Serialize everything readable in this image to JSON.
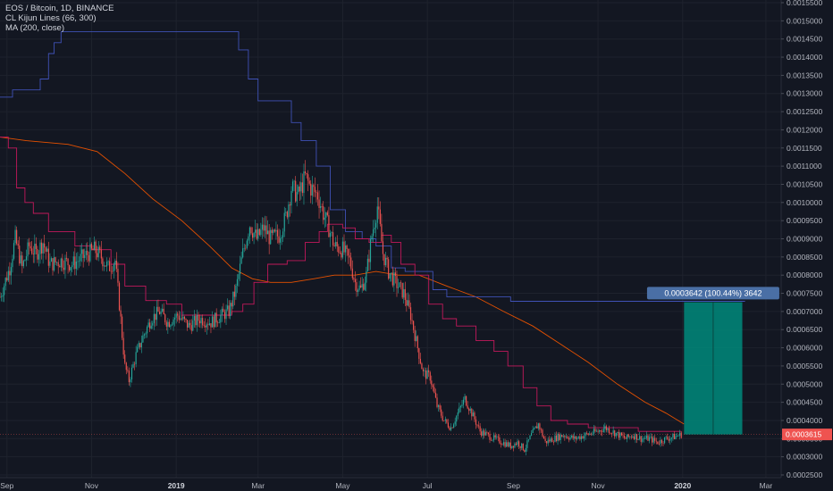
{
  "legend": {
    "symbol_line": "EOS / Bitcoin, 1D, BINANCE",
    "indicator_1": "CL Kijun Lines (66, 300)",
    "indicator_2": "MA (200, close)"
  },
  "colors": {
    "background": "#131722",
    "grid": "#1e222d",
    "candle_up": "#26a69a",
    "candle_down": "#ef5350",
    "kijun_fast": "#c2185b",
    "kijun_slow": "#3f51b5",
    "ma": "#e65100",
    "measure_box": "#00897b",
    "measure_label_bg": "#4a6fa5",
    "price_tag": "#ef5350"
  },
  "measure_label": "0.0003642 (100.44%) 3642",
  "price_tag": "0.0003615",
  "chart_data": {
    "type": "candlestick",
    "title": "EOS / Bitcoin, 1D, BINANCE",
    "ylim": [
      0.00025,
      0.00155
    ],
    "y_ticks": [
      "0.0015500",
      "0.0015000",
      "0.0014500",
      "0.0014000",
      "0.0013500",
      "0.0013000",
      "0.0012500",
      "0.0012000",
      "0.0011500",
      "0.0011000",
      "0.0010500",
      "0.0010000",
      "0.0009500",
      "0.0009000",
      "0.0008500",
      "0.0008000",
      "0.0007500",
      "0.0007000",
      "0.0006500",
      "0.0006000",
      "0.0005500",
      "0.0005000",
      "0.0004500",
      "0.0004000",
      "0.0003500",
      "0.0003000",
      "0.0002500"
    ],
    "x_range": [
      "2018-08-27",
      "2020-03-12"
    ],
    "x_ticks": [
      {
        "label": "Sep",
        "date": "2018-09-01"
      },
      {
        "label": "Nov",
        "date": "2018-11-01"
      },
      {
        "label": "2019",
        "date": "2019-01-01",
        "bold": true
      },
      {
        "label": "Mar",
        "date": "2019-03-01"
      },
      {
        "label": "May",
        "date": "2019-05-01"
      },
      {
        "label": "Jul",
        "date": "2019-07-01"
      },
      {
        "label": "Sep",
        "date": "2019-09-01"
      },
      {
        "label": "Nov",
        "date": "2019-11-01"
      },
      {
        "label": "2020",
        "date": "2020-01-01",
        "bold": true
      },
      {
        "label": "Mar",
        "date": "2020-03-01"
      }
    ],
    "close_path": [
      [
        "2018-08-27",
        0.00074
      ],
      [
        "2018-09-03",
        0.00082
      ],
      [
        "2018-09-07",
        0.0009
      ],
      [
        "2018-09-12",
        0.00082
      ],
      [
        "2018-09-17",
        0.00088
      ],
      [
        "2018-09-22",
        0.00086
      ],
      [
        "2018-09-27",
        0.00089
      ],
      [
        "2018-10-02",
        0.00083
      ],
      [
        "2018-10-10",
        0.00084
      ],
      [
        "2018-10-18",
        0.00083
      ],
      [
        "2018-10-26",
        0.00085
      ],
      [
        "2018-11-03",
        0.00087
      ],
      [
        "2018-11-08",
        0.00085
      ],
      [
        "2018-11-13",
        0.00082
      ],
      [
        "2018-11-18",
        0.00084
      ],
      [
        "2018-11-21",
        0.00072
      ],
      [
        "2018-11-25",
        0.00055
      ],
      [
        "2018-11-28",
        0.00051
      ],
      [
        "2018-12-03",
        0.00058
      ],
      [
        "2018-12-08",
        0.00063
      ],
      [
        "2018-12-14",
        0.00068
      ],
      [
        "2018-12-20",
        0.0007
      ],
      [
        "2018-12-26",
        0.00067
      ],
      [
        "2019-01-02",
        0.00069
      ],
      [
        "2019-01-10",
        0.00066
      ],
      [
        "2019-01-18",
        0.00068
      ],
      [
        "2019-01-26",
        0.00067
      ],
      [
        "2019-02-03",
        0.00069
      ],
      [
        "2019-02-08",
        0.0007
      ],
      [
        "2019-02-13",
        0.00076
      ],
      [
        "2019-02-18",
        0.00086
      ],
      [
        "2019-02-23",
        0.00094
      ],
      [
        "2019-02-28",
        0.0009
      ],
      [
        "2019-03-05",
        0.00093
      ],
      [
        "2019-03-10",
        0.0009
      ],
      [
        "2019-03-16",
        0.00091
      ],
      [
        "2019-03-21",
        0.00096
      ],
      [
        "2019-03-25",
        0.00104
      ],
      [
        "2019-03-30",
        0.00102
      ],
      [
        "2019-04-04",
        0.00107
      ],
      [
        "2019-04-08",
        0.00104
      ],
      [
        "2019-04-13",
        0.00102
      ],
      [
        "2019-04-17",
        0.00097
      ],
      [
        "2019-04-21",
        0.00093
      ],
      [
        "2019-04-25",
        0.00088
      ],
      [
        "2019-05-01",
        0.00087
      ],
      [
        "2019-05-06",
        0.00084
      ],
      [
        "2019-05-10",
        0.00078
      ],
      [
        "2019-05-14",
        0.00076
      ],
      [
        "2019-05-18",
        0.0008
      ],
      [
        "2019-05-22",
        0.00091
      ],
      [
        "2019-05-26",
        0.00099
      ],
      [
        "2019-05-30",
        0.00086
      ],
      [
        "2019-06-03",
        0.00081
      ],
      [
        "2019-06-08",
        0.00078
      ],
      [
        "2019-06-14",
        0.00075
      ],
      [
        "2019-06-19",
        0.00069
      ],
      [
        "2019-06-24",
        0.0006
      ],
      [
        "2019-06-28",
        0.00053
      ],
      [
        "2019-07-03",
        0.00052
      ],
      [
        "2019-07-08",
        0.00044
      ],
      [
        "2019-07-13",
        0.0004
      ],
      [
        "2019-07-18",
        0.00038
      ],
      [
        "2019-07-23",
        0.00042
      ],
      [
        "2019-07-28",
        0.00046
      ],
      [
        "2019-08-02",
        0.00042
      ],
      [
        "2019-08-08",
        0.00037
      ],
      [
        "2019-08-13",
        0.00036
      ],
      [
        "2019-08-18",
        0.00035
      ],
      [
        "2019-08-24",
        0.00034
      ],
      [
        "2019-08-30",
        0.00033
      ],
      [
        "2019-09-04",
        0.00034
      ],
      [
        "2019-09-09",
        0.00032
      ],
      [
        "2019-09-14",
        0.00036
      ],
      [
        "2019-09-19",
        0.00039
      ],
      [
        "2019-09-24",
        0.00034
      ],
      [
        "2019-09-30",
        0.00035
      ],
      [
        "2019-10-07",
        0.00036
      ],
      [
        "2019-10-15",
        0.00035
      ],
      [
        "2019-10-23",
        0.00036
      ],
      [
        "2019-11-01",
        0.00037
      ],
      [
        "2019-11-06",
        0.00038
      ],
      [
        "2019-11-11",
        0.00037
      ],
      [
        "2019-11-16",
        0.00036
      ],
      [
        "2019-11-21",
        0.00035
      ],
      [
        "2019-11-26",
        0.00036
      ],
      [
        "2019-12-02",
        0.00035
      ],
      [
        "2019-12-08",
        0.00035
      ],
      [
        "2019-12-14",
        0.00034
      ],
      [
        "2019-12-20",
        0.00035
      ],
      [
        "2019-12-26",
        0.000355
      ],
      [
        "2019-12-31",
        0.0003615
      ]
    ],
    "kijun_fast": [
      [
        "2018-08-27",
        0.00118
      ],
      [
        "2018-09-02",
        0.00115
      ],
      [
        "2018-09-08",
        0.00104
      ],
      [
        "2018-09-14",
        0.001
      ],
      [
        "2018-09-20",
        0.00097
      ],
      [
        "2018-10-01",
        0.00092
      ],
      [
        "2018-10-20",
        0.00088
      ],
      [
        "2018-11-01",
        0.00087
      ],
      [
        "2018-11-15",
        0.00083
      ],
      [
        "2018-11-25",
        0.00077
      ],
      [
        "2018-12-10",
        0.00073
      ],
      [
        "2018-12-25",
        0.00072
      ],
      [
        "2019-01-05",
        0.00069
      ],
      [
        "2019-01-25",
        0.00069
      ],
      [
        "2019-02-10",
        0.0007
      ],
      [
        "2019-02-18",
        0.00072
      ],
      [
        "2019-02-26",
        0.00078
      ],
      [
        "2019-03-08",
        0.00083
      ],
      [
        "2019-03-22",
        0.00084
      ],
      [
        "2019-04-04",
        0.00089
      ],
      [
        "2019-04-14",
        0.00092
      ],
      [
        "2019-04-20",
        0.00094
      ],
      [
        "2019-05-01",
        0.00093
      ],
      [
        "2019-05-10",
        0.0009
      ],
      [
        "2019-05-20",
        0.00089
      ],
      [
        "2019-05-29",
        0.00091
      ],
      [
        "2019-06-05",
        0.00089
      ],
      [
        "2019-06-12",
        0.00083
      ],
      [
        "2019-06-22",
        0.0008
      ],
      [
        "2019-07-02",
        0.00072
      ],
      [
        "2019-07-12",
        0.00068
      ],
      [
        "2019-07-22",
        0.00066
      ],
      [
        "2019-08-05",
        0.00062
      ],
      [
        "2019-08-18",
        0.00059
      ],
      [
        "2019-08-28",
        0.00055
      ],
      [
        "2019-09-08",
        0.00049
      ],
      [
        "2019-09-18",
        0.00044
      ],
      [
        "2019-09-28",
        0.0004
      ],
      [
        "2019-10-10",
        0.00039
      ],
      [
        "2019-10-25",
        0.00038
      ],
      [
        "2019-11-10",
        0.00038
      ],
      [
        "2019-11-30",
        0.00037
      ],
      [
        "2019-12-15",
        0.00037
      ],
      [
        "2019-12-31",
        0.00037
      ]
    ],
    "kijun_slow": [
      [
        "2018-08-27",
        0.00129
      ],
      [
        "2018-09-05",
        0.00131
      ],
      [
        "2018-09-15",
        0.00131
      ],
      [
        "2018-09-25",
        0.00134
      ],
      [
        "2018-10-01",
        0.00141
      ],
      [
        "2018-10-05",
        0.00144
      ],
      [
        "2018-10-10",
        0.00147
      ],
      [
        "2018-10-20",
        0.00147
      ],
      [
        "2018-11-15",
        0.00147
      ],
      [
        "2019-01-10",
        0.00147
      ],
      [
        "2019-02-05",
        0.00147
      ],
      [
        "2019-02-15",
        0.00142
      ],
      [
        "2019-02-22",
        0.00134
      ],
      [
        "2019-03-01",
        0.00128
      ],
      [
        "2019-03-15",
        0.00128
      ],
      [
        "2019-03-25",
        0.00122
      ],
      [
        "2019-04-01",
        0.00117
      ],
      [
        "2019-04-12",
        0.0011
      ],
      [
        "2019-04-22",
        0.00098
      ],
      [
        "2019-05-03",
        0.00092
      ],
      [
        "2019-05-15",
        0.0009
      ],
      [
        "2019-05-25",
        0.00088
      ],
      [
        "2019-06-05",
        0.00082
      ],
      [
        "2019-06-15",
        0.00081
      ],
      [
        "2019-06-25",
        0.00081
      ],
      [
        "2019-07-05",
        0.00076
      ],
      [
        "2019-07-15",
        0.00074
      ],
      [
        "2019-07-30",
        0.00074
      ],
      [
        "2019-08-30",
        0.000728
      ],
      [
        "2020-01-01",
        0.000728
      ],
      [
        "2020-02-15",
        0.000728
      ]
    ],
    "ma_200": [
      [
        "2018-08-27",
        0.00118
      ],
      [
        "2018-09-15",
        0.00117
      ],
      [
        "2018-10-15",
        0.00116
      ],
      [
        "2018-11-05",
        0.00114
      ],
      [
        "2018-11-25",
        0.00108
      ],
      [
        "2018-12-15",
        0.00101
      ],
      [
        "2019-01-05",
        0.00095
      ],
      [
        "2019-01-25",
        0.00088
      ],
      [
        "2019-02-10",
        0.00082
      ],
      [
        "2019-02-25",
        0.00079
      ],
      [
        "2019-03-10",
        0.00078
      ],
      [
        "2019-03-25",
        0.00078
      ],
      [
        "2019-04-10",
        0.00079
      ],
      [
        "2019-04-25",
        0.0008
      ],
      [
        "2019-05-10",
        0.0008
      ],
      [
        "2019-05-25",
        0.00081
      ],
      [
        "2019-06-10",
        0.0008
      ],
      [
        "2019-06-25",
        0.0008
      ],
      [
        "2019-07-15",
        0.00077
      ],
      [
        "2019-08-05",
        0.00074
      ],
      [
        "2019-08-25",
        0.0007
      ],
      [
        "2019-09-15",
        0.00066
      ],
      [
        "2019-10-05",
        0.00061
      ],
      [
        "2019-10-25",
        0.00056
      ],
      [
        "2019-11-15",
        0.0005
      ],
      [
        "2019-12-05",
        0.00045
      ],
      [
        "2019-12-20",
        0.00042
      ],
      [
        "2020-01-02",
        0.00039
      ]
    ],
    "measure": {
      "x_from": "2020-01-02",
      "x_to": "2020-02-13",
      "y_from": 0.0003615,
      "y_to": 0.0007257,
      "change": "0.0003642",
      "percent": "100.44%",
      "ticks": "3642"
    },
    "last_price": 0.0003615
  }
}
